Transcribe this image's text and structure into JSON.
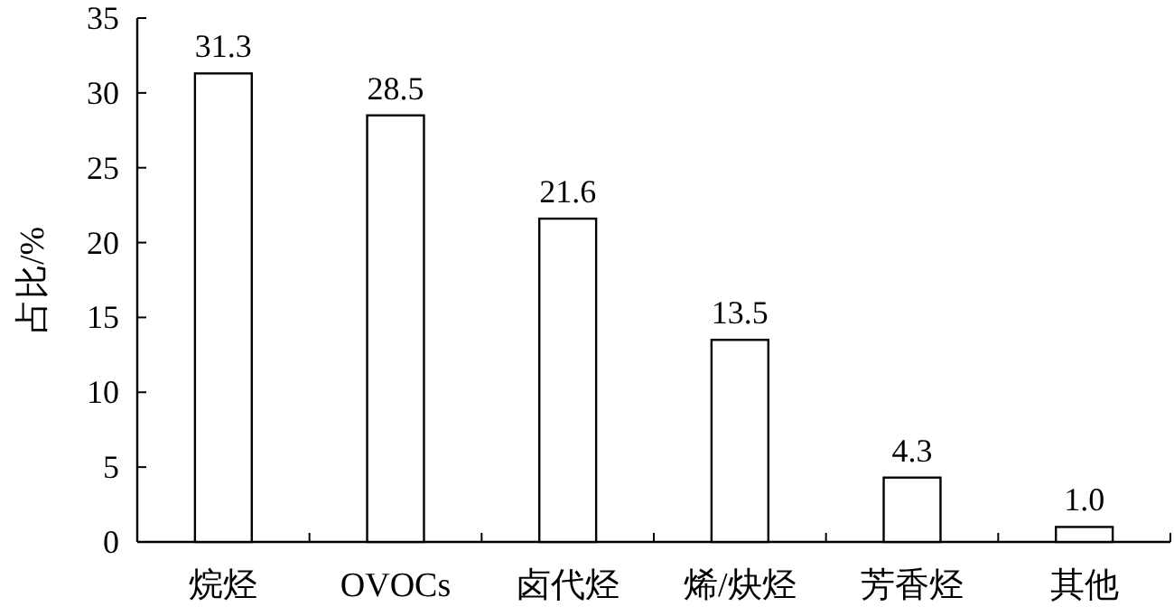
{
  "chart_data": {
    "type": "bar",
    "ylabel": "占比/%",
    "categories": [
      "烷烃",
      "OVOCs",
      "卤代烃",
      "烯/炔烃",
      "芳香烃",
      "其他"
    ],
    "series": [
      {
        "color": "#ffffff",
        "values": [
          31.3,
          28.5,
          21.6,
          13.5,
          4.3,
          1.0
        ],
        "value_labels": [
          "31.3",
          "28.5",
          "21.6",
          "13.5",
          "4.3",
          "1.0"
        ]
      }
    ],
    "ylim": [
      0,
      35
    ],
    "yticks": [
      0,
      5,
      10,
      15,
      20,
      25,
      30,
      35
    ]
  }
}
